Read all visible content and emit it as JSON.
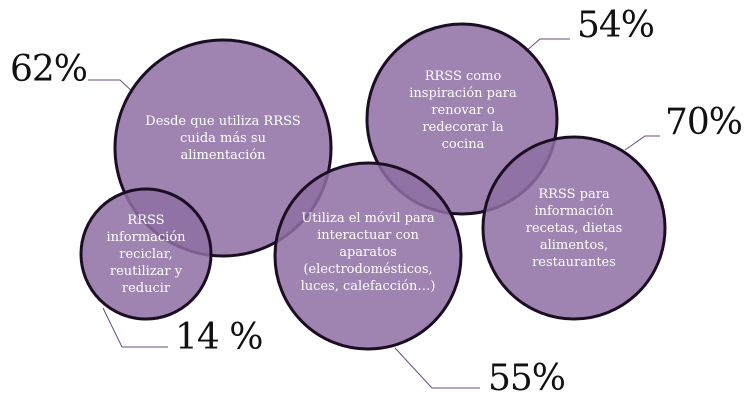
{
  "colors": {
    "bubble_fill": "#8e6fa3",
    "bubble_stroke": "#1c0e22",
    "leader": "#6b4a82"
  },
  "bubbles": [
    {
      "id": "alimentacion",
      "label": "Desde que utiliza RRSS cuida más su alimentación",
      "value": "62%"
    },
    {
      "id": "reciclar",
      "label": "RRSS información reciclar, reutilizar y reducir",
      "value": "14 %"
    },
    {
      "id": "movil",
      "label": "Utiliza el móvil para interactuar con aparatos (electrodomésticos, luces, calefacción…)",
      "value": "55%"
    },
    {
      "id": "cocina",
      "label": "RRSS como inspiración para renovar o redecorar la cocina",
      "value": "54%"
    },
    {
      "id": "recetas",
      "label": "RRSS para información recetas, dietas alimentos, restaurantes",
      "value": "70%"
    }
  ]
}
